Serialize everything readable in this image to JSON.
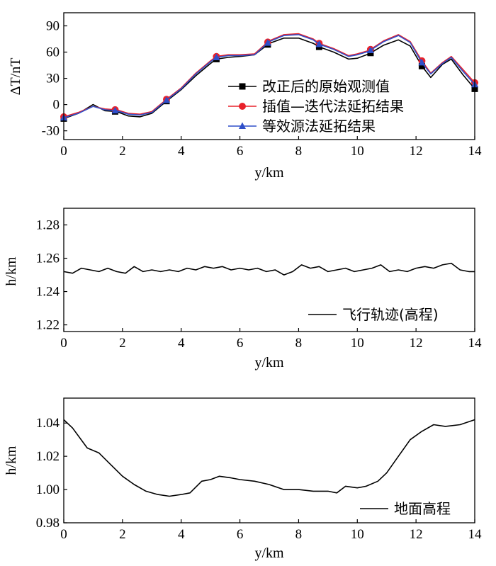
{
  "chart_data": [
    {
      "type": "line",
      "xlabel": "y/km",
      "ylabel": "ΔT/nT",
      "xlim": [
        0,
        14
      ],
      "ylim": [
        -40,
        105
      ],
      "xticks": [
        "0",
        "2",
        "4",
        "6",
        "8",
        "10",
        "12",
        "14"
      ],
      "yticks": [
        "-30",
        "0",
        "30",
        "60",
        "90"
      ],
      "legend_position": "lower-right",
      "series": [
        {
          "name": "改正后的原始观测值",
          "color": "#000000",
          "marker": "square",
          "x": [
            0,
            0.5,
            1.0,
            1.4,
            1.8,
            2.2,
            2.6,
            3.0,
            3.5,
            4.0,
            4.5,
            5.0,
            5.2,
            5.6,
            6.0,
            6.5,
            7.0,
            7.5,
            8.0,
            8.5,
            8.7,
            9.2,
            9.7,
            10.0,
            10.4,
            10.9,
            11.4,
            11.8,
            12.2,
            12.5,
            12.9,
            13.2,
            13.6,
            14.0
          ],
          "y": [
            -16,
            -10,
            0,
            -7,
            -8,
            -13,
            -14,
            -10,
            4,
            17,
            33,
            47,
            52,
            54,
            55,
            57,
            70,
            76,
            76,
            70,
            66,
            60,
            52,
            53,
            58,
            68,
            74,
            67,
            44,
            31,
            46,
            52,
            34,
            18
          ]
        },
        {
          "name": "插值—迭代法延拓结果",
          "color": "#e8222b",
          "marker": "circle",
          "x": [
            0,
            0.5,
            1.0,
            1.4,
            1.8,
            2.2,
            2.6,
            3.0,
            3.5,
            4.0,
            4.5,
            5.0,
            5.2,
            5.6,
            6.0,
            6.5,
            7.0,
            7.5,
            8.0,
            8.5,
            8.7,
            9.2,
            9.7,
            10.0,
            10.4,
            10.9,
            11.4,
            11.8,
            12.2,
            12.5,
            12.9,
            13.2,
            13.6,
            14.0
          ],
          "y": [
            -14,
            -9,
            -2,
            -5,
            -6,
            -10,
            -11,
            -8,
            6,
            19,
            36,
            50,
            55,
            57,
            57,
            58,
            73,
            80,
            81,
            75,
            70,
            64,
            56,
            58,
            62,
            73,
            80,
            72,
            50,
            36,
            48,
            55,
            40,
            25
          ]
        },
        {
          "name": "等效源法延拓结果",
          "color": "#2f4fc9",
          "marker": "triangle",
          "x": [
            0,
            0.5,
            1.0,
            1.4,
            1.8,
            2.2,
            2.6,
            3.0,
            3.5,
            4.0,
            4.5,
            5.0,
            5.2,
            5.6,
            6.0,
            6.5,
            7.0,
            7.5,
            8.0,
            8.5,
            8.7,
            9.2,
            9.7,
            10.0,
            10.4,
            10.9,
            11.4,
            11.8,
            12.2,
            12.5,
            12.9,
            13.2,
            13.6,
            14.0
          ],
          "y": [
            -15,
            -10,
            -2,
            -6,
            -7,
            -11,
            -12,
            -9,
            5,
            18,
            35,
            49,
            54,
            56,
            56,
            57,
            72,
            79,
            80,
            74,
            69,
            63,
            55,
            57,
            61,
            72,
            79,
            71,
            48,
            35,
            47,
            54,
            38,
            23
          ]
        }
      ],
      "marker_x": [
        0,
        1.75,
        3.5,
        5.2,
        6.95,
        8.7,
        10.45,
        12.2,
        14.0
      ]
    },
    {
      "type": "line",
      "xlabel": "y/km",
      "ylabel": "h/km",
      "xlim": [
        0,
        14
      ],
      "ylim": [
        1.216,
        1.29
      ],
      "xticks": [
        "0",
        "2",
        "4",
        "6",
        "8",
        "10",
        "12",
        "14"
      ],
      "yticks": [
        "1.22",
        "1.24",
        "1.26",
        "1.28"
      ],
      "legend_position": "lower-right",
      "series": [
        {
          "name": "飞行轨迹(高程)",
          "color": "#000000",
          "x": [
            0,
            0.3,
            0.6,
            0.9,
            1.2,
            1.5,
            1.8,
            2.1,
            2.4,
            2.7,
            3.0,
            3.3,
            3.6,
            3.9,
            4.2,
            4.5,
            4.8,
            5.1,
            5.4,
            5.7,
            6.0,
            6.3,
            6.6,
            6.9,
            7.2,
            7.5,
            7.8,
            8.1,
            8.4,
            8.7,
            9.0,
            9.3,
            9.6,
            9.9,
            10.2,
            10.5,
            10.8,
            11.1,
            11.4,
            11.7,
            12.0,
            12.3,
            12.6,
            12.9,
            13.2,
            13.5,
            13.8,
            14.0
          ],
          "y": [
            1.252,
            1.251,
            1.254,
            1.253,
            1.252,
            1.254,
            1.252,
            1.251,
            1.255,
            1.252,
            1.253,
            1.252,
            1.253,
            1.252,
            1.254,
            1.253,
            1.255,
            1.254,
            1.255,
            1.253,
            1.254,
            1.253,
            1.254,
            1.252,
            1.253,
            1.25,
            1.252,
            1.256,
            1.254,
            1.255,
            1.252,
            1.253,
            1.254,
            1.252,
            1.253,
            1.254,
            1.256,
            1.252,
            1.253,
            1.252,
            1.254,
            1.255,
            1.254,
            1.256,
            1.257,
            1.253,
            1.252,
            1.252
          ]
        }
      ]
    },
    {
      "type": "line",
      "xlabel": "y/km",
      "ylabel": "h/km",
      "xlim": [
        0,
        14
      ],
      "ylim": [
        0.98,
        1.055
      ],
      "xticks": [
        "0",
        "2",
        "4",
        "6",
        "8",
        "10",
        "12",
        "14"
      ],
      "yticks": [
        "0.98",
        "1.00",
        "1.02",
        "1.04"
      ],
      "legend_position": "lower-right",
      "series": [
        {
          "name": "地面高程",
          "color": "#000000",
          "x": [
            0,
            0.3,
            0.8,
            1.2,
            1.6,
            2.0,
            2.4,
            2.8,
            3.2,
            3.6,
            4.0,
            4.3,
            4.7,
            5.0,
            5.3,
            5.7,
            6.0,
            6.5,
            7.0,
            7.5,
            8.0,
            8.5,
            9.0,
            9.3,
            9.6,
            10.0,
            10.3,
            10.7,
            11.0,
            11.4,
            11.8,
            12.2,
            12.6,
            13.0,
            13.5,
            14.0
          ],
          "y": [
            1.042,
            1.037,
            1.025,
            1.022,
            1.015,
            1.008,
            1.003,
            0.999,
            0.997,
            0.996,
            0.997,
            0.998,
            1.005,
            1.006,
            1.008,
            1.007,
            1.006,
            1.005,
            1.003,
            1.0,
            1.0,
            0.999,
            0.999,
            0.998,
            1.002,
            1.001,
            1.002,
            1.005,
            1.01,
            1.02,
            1.03,
            1.035,
            1.039,
            1.038,
            1.039,
            1.042
          ]
        }
      ]
    }
  ]
}
